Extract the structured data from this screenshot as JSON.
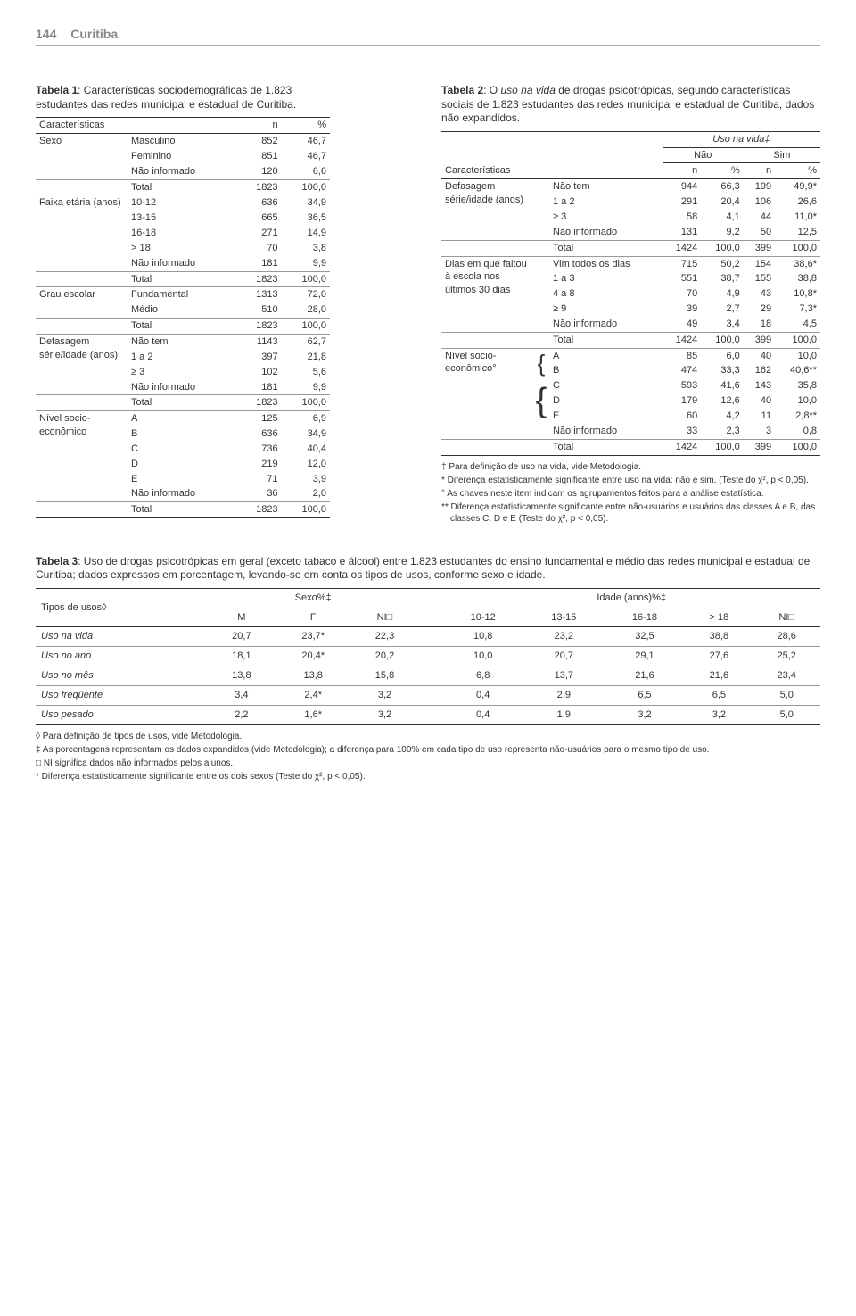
{
  "page": {
    "number": "144",
    "city": "Curitiba"
  },
  "table1": {
    "caption_bold": "Tabela 1",
    "caption_rest": ": Características sociodemográficas de 1.823 estudantes das redes municipal e estadual de Curitiba.",
    "head_char": "Características",
    "head_n": "n",
    "head_pct": "%",
    "groups": [
      {
        "label": "Sexo",
        "rows": [
          {
            "k": "Masculino",
            "n": "852",
            "p": "46,7"
          },
          {
            "k": "Feminino",
            "n": "851",
            "p": "46,7"
          },
          {
            "k": "Não informado",
            "n": "120",
            "p": "6,6"
          }
        ],
        "total": {
          "k": "Total",
          "n": "1823",
          "p": "100,0"
        }
      },
      {
        "label": "Faixa etária (anos)",
        "rows": [
          {
            "k": "10-12",
            "n": "636",
            "p": "34,9"
          },
          {
            "k": "13-15",
            "n": "665",
            "p": "36,5"
          },
          {
            "k": "16-18",
            "n": "271",
            "p": "14,9"
          },
          {
            "k": "> 18",
            "n": "70",
            "p": "3,8"
          },
          {
            "k": "Não informado",
            "n": "181",
            "p": "9,9"
          }
        ],
        "total": {
          "k": "Total",
          "n": "1823",
          "p": "100,0"
        }
      },
      {
        "label": "Grau escolar",
        "rows": [
          {
            "k": "Fundamental",
            "n": "1313",
            "p": "72,0"
          },
          {
            "k": "Médio",
            "n": "510",
            "p": "28,0"
          }
        ],
        "total": {
          "k": "Total",
          "n": "1823",
          "p": "100,0"
        }
      },
      {
        "label": "Defasagem série/idade (anos)",
        "rows": [
          {
            "k": "Não tem",
            "n": "1143",
            "p": "62,7"
          },
          {
            "k": "1 a 2",
            "n": "397",
            "p": "21,8"
          },
          {
            "k": "≥ 3",
            "n": "102",
            "p": "5,6"
          },
          {
            "k": "Não informado",
            "n": "181",
            "p": "9,9"
          }
        ],
        "total": {
          "k": "Total",
          "n": "1823",
          "p": "100,0"
        }
      },
      {
        "label": "Nível socio-econômico",
        "rows": [
          {
            "k": "A",
            "n": "125",
            "p": "6,9"
          },
          {
            "k": "B",
            "n": "636",
            "p": "34,9"
          },
          {
            "k": "C",
            "n": "736",
            "p": "40,4"
          },
          {
            "k": "D",
            "n": "219",
            "p": "12,0"
          },
          {
            "k": "E",
            "n": "71",
            "p": "3,9"
          },
          {
            "k": "Não informado",
            "n": "36",
            "p": "2,0"
          }
        ],
        "total": {
          "k": "Total",
          "n": "1823",
          "p": "100,0"
        }
      }
    ]
  },
  "table2": {
    "caption_bold": "Tabela 2",
    "caption_rest_a": ": O ",
    "caption_ital": "uso na vida",
    "caption_rest_b": " de drogas psicotrópicas, segundo características sociais de 1.823 estudantes das redes municipal e estadual de Curitiba, dados não expandidos.",
    "head_char": "Características",
    "head_uso": "Uso na vida‡",
    "head_nao": "Não",
    "head_sim": "Sim",
    "head_n": "n",
    "head_pct": "%",
    "groups": [
      {
        "label": "Defasagem série/idade (anos)",
        "rows": [
          {
            "k": "Não tem",
            "n1": "944",
            "p1": "66,3",
            "n2": "199",
            "p2": "49,9*"
          },
          {
            "k": "1 a 2",
            "n1": "291",
            "p1": "20,4",
            "n2": "106",
            "p2": "26,6"
          },
          {
            "k": "≥ 3",
            "n1": "58",
            "p1": "4,1",
            "n2": "44",
            "p2": "11,0*"
          },
          {
            "k": "Não informado",
            "n1": "131",
            "p1": "9,2",
            "n2": "50",
            "p2": "12,5"
          }
        ],
        "total": {
          "k": "Total",
          "n1": "1424",
          "p1": "100,0",
          "n2": "399",
          "p2": "100,0"
        }
      },
      {
        "label": "Dias em que faltou à escola nos últimos 30 dias",
        "rows": [
          {
            "k": "Vim todos os dias",
            "n1": "715",
            "p1": "50,2",
            "n2": "154",
            "p2": "38,6*"
          },
          {
            "k": "1 a 3",
            "n1": "551",
            "p1": "38,7",
            "n2": "155",
            "p2": "38,8"
          },
          {
            "k": "4 a 8",
            "n1": "70",
            "p1": "4,9",
            "n2": "43",
            "p2": "10,8*"
          },
          {
            "k": "≥ 9",
            "n1": "39",
            "p1": "2,7",
            "n2": "29",
            "p2": "7,3*"
          },
          {
            "k": "Não informado",
            "n1": "49",
            "p1": "3,4",
            "n2": "18",
            "p2": "4,5"
          }
        ],
        "total": {
          "k": "Total",
          "n1": "1424",
          "p1": "100,0",
          "n2": "399",
          "p2": "100,0"
        }
      },
      {
        "label": "Nível socio-econômico°",
        "rows": [
          {
            "k": "A",
            "n1": "85",
            "p1": "6,0",
            "n2": "40",
            "p2": "10,0",
            "brace": "top"
          },
          {
            "k": "B",
            "n1": "474",
            "p1": "33,3",
            "n2": "162",
            "p2": "40,6**",
            "brace": "bot"
          },
          {
            "k": "C",
            "n1": "593",
            "p1": "41,6",
            "n2": "143",
            "p2": "35,8",
            "brace": "top3"
          },
          {
            "k": "D",
            "n1": "179",
            "p1": "12,6",
            "n2": "40",
            "p2": "10,0"
          },
          {
            "k": "E",
            "n1": "60",
            "p1": "4,2",
            "n2": "11",
            "p2": "2,8**"
          },
          {
            "k": "Não informado",
            "n1": "33",
            "p1": "2,3",
            "n2": "3",
            "p2": "0,8"
          }
        ],
        "total": {
          "k": "Total",
          "n1": "1424",
          "p1": "100,0",
          "n2": "399",
          "p2": "100,0"
        }
      }
    ],
    "footnotes": [
      "‡ Para definição de uso na vida, vide Metodologia.",
      "* Diferença estatisticamente significante entre uso na vida: não e sim. (Teste do χ², p < 0,05).",
      "° As chaves neste item indicam os agrupamentos feitos para a análise estatística.",
      "** Diferença estatisticamente significante entre não-usuários e usuários das classes A e B, das classes C, D e E (Teste do χ², p < 0,05)."
    ]
  },
  "table3": {
    "caption_bold": "Tabela 3",
    "caption_rest": ": Uso de drogas psicotrópicas em geral (exceto tabaco e álcool) entre 1.823 estudantes do ensino fundamental e médio das redes municipal e estadual de Curitiba; dados expressos em porcentagem, levando-se em conta os tipos de usos, conforme sexo e idade.",
    "head_tipos": "Tipos de usos◊",
    "head_sexo": "Sexo%‡",
    "head_idade": "Idade (anos)%‡",
    "cols_sexo": [
      "M",
      "F",
      "NI□"
    ],
    "cols_idade": [
      "10-12",
      "13-15",
      "16-18",
      "> 18",
      "NI□"
    ],
    "rows": [
      {
        "k": "Uso na vida",
        "v": [
          "20,7",
          "23,7*",
          "22,3",
          "10,8",
          "23,2",
          "32,5",
          "38,8",
          "28,6"
        ]
      },
      {
        "k": "Uso no ano",
        "v": [
          "18,1",
          "20,4*",
          "20,2",
          "10,0",
          "20,7",
          "29,1",
          "27,6",
          "25,2"
        ]
      },
      {
        "k": "Uso no mês",
        "v": [
          "13,8",
          "13,8",
          "15,8",
          "6,8",
          "13,7",
          "21,6",
          "21,6",
          "23,4"
        ]
      },
      {
        "k": "Uso freqüente",
        "v": [
          "3,4",
          "2,4*",
          "3,2",
          "0,4",
          "2,9",
          "6,5",
          "6,5",
          "5,0"
        ]
      },
      {
        "k": "Uso pesado",
        "v": [
          "2,2",
          "1,6*",
          "3,2",
          "0,4",
          "1,9",
          "3,2",
          "3,2",
          "5,0"
        ]
      }
    ],
    "footnotes": [
      "◊ Para definição de tipos de usos, vide Metodologia.",
      "‡ As porcentagens representam os dados expandidos (vide Metodologia); a diferença para 100% em cada tipo de uso representa não-usuários para o mesmo tipo de uso.",
      "□ NI significa dados não informados pelos alunos.",
      "* Diferença estatisticamente significante entre os dois sexos (Teste do χ², p < 0,05)."
    ]
  }
}
